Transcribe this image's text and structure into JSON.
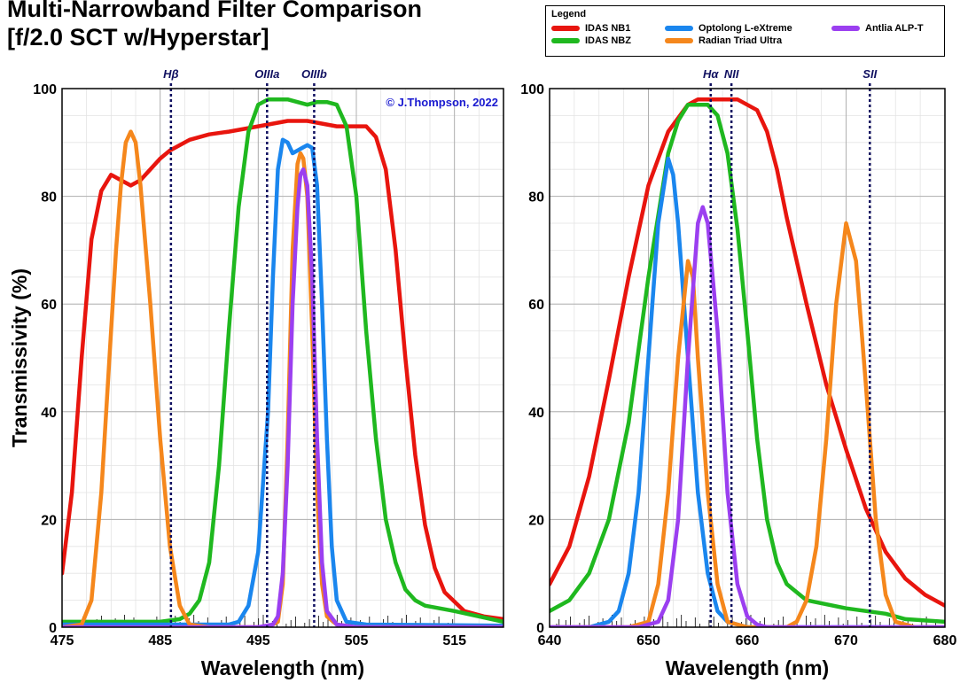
{
  "title_line1": "Multi-Narrowband Filter Comparison",
  "title_line2": "[f/2.0 SCT w/Hyperstar]",
  "copyright": "© J.Thompson, 2022",
  "legend": {
    "title": "Legend",
    "items": [
      {
        "label": "IDAS NB1",
        "color": "#e8150e"
      },
      {
        "label": "IDAS NBZ",
        "color": "#1fb81f"
      },
      {
        "label": "Optolong L-eXtreme",
        "color": "#1a86ee"
      },
      {
        "label": "Radian Triad Ultra",
        "color": "#f5871c"
      },
      {
        "label": "Antlia ALP-T",
        "color": "#9b3ff0"
      }
    ]
  },
  "chart_data": [
    {
      "type": "line",
      "ylabel": "Transmissivity (%)",
      "xlabel": "Wavelength (nm)",
      "xlim": [
        475,
        520
      ],
      "ylim": [
        0,
        100
      ],
      "xticks": [
        475,
        485,
        495,
        505,
        515
      ],
      "yticks": [
        0,
        20,
        40,
        60,
        80,
        100
      ],
      "grid": true,
      "lines": [
        {
          "label": "Hβ",
          "x": 486.1
        },
        {
          "label": "OIIIa",
          "x": 495.9
        },
        {
          "label": "OIIIb",
          "x": 500.7
        }
      ],
      "series": [
        {
          "name": "IDAS NB1",
          "color": "#e8150e",
          "points": [
            [
              475,
              10
            ],
            [
              476,
              25
            ],
            [
              477,
              50
            ],
            [
              478,
              72
            ],
            [
              479,
              81
            ],
            [
              480,
              84
            ],
            [
              481,
              83
            ],
            [
              482,
              82
            ],
            [
              483,
              83
            ],
            [
              484,
              85
            ],
            [
              485,
              87
            ],
            [
              486,
              88.5
            ],
            [
              488,
              90.5
            ],
            [
              490,
              91.5
            ],
            [
              492,
              92
            ],
            [
              495,
              93
            ],
            [
              498,
              94
            ],
            [
              500,
              94
            ],
            [
              503,
              93
            ],
            [
              506,
              93
            ],
            [
              507,
              91
            ],
            [
              508,
              85
            ],
            [
              509,
              70
            ],
            [
              510,
              50
            ],
            [
              511,
              32
            ],
            [
              512,
              19
            ],
            [
              513,
              11
            ],
            [
              514,
              6.5
            ],
            [
              516,
              3
            ],
            [
              518,
              2
            ],
            [
              520,
              1.5
            ]
          ]
        },
        {
          "name": "IDAS NBZ",
          "color": "#1fb81f",
          "points": [
            [
              475,
              1
            ],
            [
              480,
              1
            ],
            [
              485,
              1
            ],
            [
              487,
              1.5
            ],
            [
              488,
              2.5
            ],
            [
              489,
              5
            ],
            [
              490,
              12
            ],
            [
              491,
              30
            ],
            [
              492,
              55
            ],
            [
              493,
              78
            ],
            [
              494,
              92
            ],
            [
              495,
              97
            ],
            [
              496,
              98
            ],
            [
              498,
              98
            ],
            [
              499,
              97.5
            ],
            [
              500,
              97
            ],
            [
              501,
              97.5
            ],
            [
              502,
              97.5
            ],
            [
              503,
              97
            ],
            [
              504,
              93
            ],
            [
              505,
              80
            ],
            [
              506,
              55
            ],
            [
              507,
              35
            ],
            [
              508,
              20
            ],
            [
              509,
              12
            ],
            [
              510,
              7
            ],
            [
              511,
              5
            ],
            [
              512,
              4
            ],
            [
              515,
              3
            ],
            [
              520,
              1
            ]
          ]
        },
        {
          "name": "Optolong L-eXtreme",
          "color": "#1a86ee",
          "points": [
            [
              475,
              0.5
            ],
            [
              490,
              0.5
            ],
            [
              492,
              0.5
            ],
            [
              493,
              1
            ],
            [
              494,
              4
            ],
            [
              495,
              14
            ],
            [
              496,
              40
            ],
            [
              496.5,
              65
            ],
            [
              497,
              85
            ],
            [
              497.5,
              90.5
            ],
            [
              498,
              90
            ],
            [
              498.5,
              88
            ],
            [
              499,
              88.5
            ],
            [
              499.5,
              89
            ],
            [
              500,
              89.5
            ],
            [
              500.5,
              89
            ],
            [
              501,
              82
            ],
            [
              501.5,
              60
            ],
            [
              502,
              35
            ],
            [
              502.5,
              15
            ],
            [
              503,
              5
            ],
            [
              504,
              1
            ],
            [
              506,
              0.5
            ],
            [
              520,
              0.3
            ]
          ]
        },
        {
          "name": "Radian Triad Ultra",
          "color": "#f5871c",
          "points": [
            [
              475,
              0
            ],
            [
              477,
              0.5
            ],
            [
              478,
              5
            ],
            [
              479,
              25
            ],
            [
              480,
              55
            ],
            [
              480.5,
              70
            ],
            [
              481,
              82
            ],
            [
              481.5,
              90
            ],
            [
              482,
              92
            ],
            [
              482.5,
              90
            ],
            [
              483,
              82
            ],
            [
              484,
              60
            ],
            [
              485,
              35
            ],
            [
              486,
              15
            ],
            [
              487,
              4
            ],
            [
              488,
              0.5
            ],
            [
              490,
              0
            ],
            [
              496,
              0
            ],
            [
              497,
              1
            ],
            [
              497.5,
              8
            ],
            [
              498,
              35
            ],
            [
              498.5,
              70
            ],
            [
              499,
              86
            ],
            [
              499.3,
              88
            ],
            [
              499.6,
              87
            ],
            [
              500,
              80
            ],
            [
              500.5,
              55
            ],
            [
              501,
              25
            ],
            [
              501.5,
              8
            ],
            [
              502,
              2
            ],
            [
              503,
              0.5
            ],
            [
              505,
              0
            ],
            [
              520,
              0
            ]
          ]
        },
        {
          "name": "Antlia ALP-T",
          "color": "#9b3ff0",
          "points": [
            [
              475,
              0
            ],
            [
              495,
              0
            ],
            [
              496.5,
              0.5
            ],
            [
              497,
              2
            ],
            [
              497.5,
              10
            ],
            [
              498,
              30
            ],
            [
              498.5,
              60
            ],
            [
              499,
              78
            ],
            [
              499.3,
              84
            ],
            [
              499.6,
              85
            ],
            [
              500,
              82
            ],
            [
              500.5,
              65
            ],
            [
              501,
              35
            ],
            [
              501.5,
              12
            ],
            [
              502,
              3
            ],
            [
              503,
              0.5
            ],
            [
              505,
              0
            ],
            [
              520,
              0
            ]
          ]
        }
      ]
    },
    {
      "type": "line",
      "xlabel": "Wavelength (nm)",
      "xlim": [
        640,
        680
      ],
      "ylim": [
        0,
        100
      ],
      "xticks": [
        640,
        650,
        660,
        670,
        680
      ],
      "yticks": [
        0,
        20,
        40,
        60,
        80,
        100
      ],
      "grid": true,
      "lines": [
        {
          "label": "Hα",
          "x": 656.3
        },
        {
          "label": "NII",
          "x": 658.4
        },
        {
          "label": "SII",
          "x": 672.4
        }
      ],
      "series": [
        {
          "name": "IDAS NB1",
          "color": "#e8150e",
          "points": [
            [
              640,
              8
            ],
            [
              642,
              15
            ],
            [
              644,
              28
            ],
            [
              646,
              46
            ],
            [
              648,
              65
            ],
            [
              650,
              82
            ],
            [
              652,
              92
            ],
            [
              654,
              97
            ],
            [
              655,
              98
            ],
            [
              657,
              98
            ],
            [
              659,
              98
            ],
            [
              661,
              96
            ],
            [
              662,
              92
            ],
            [
              663,
              85
            ],
            [
              664,
              76
            ],
            [
              666,
              60
            ],
            [
              668,
              45
            ],
            [
              670,
              33
            ],
            [
              672,
              22
            ],
            [
              674,
              14
            ],
            [
              676,
              9
            ],
            [
              678,
              6
            ],
            [
              680,
              4
            ]
          ]
        },
        {
          "name": "IDAS NBZ",
          "color": "#1fb81f",
          "points": [
            [
              640,
              3
            ],
            [
              642,
              5
            ],
            [
              644,
              10
            ],
            [
              646,
              20
            ],
            [
              648,
              38
            ],
            [
              650,
              65
            ],
            [
              652,
              88
            ],
            [
              653,
              94
            ],
            [
              654,
              97
            ],
            [
              656,
              97
            ],
            [
              657,
              95
            ],
            [
              658,
              88
            ],
            [
              659,
              74
            ],
            [
              660,
              55
            ],
            [
              661,
              35
            ],
            [
              662,
              20
            ],
            [
              663,
              12
            ],
            [
              664,
              8
            ],
            [
              666,
              5
            ],
            [
              670,
              3.5
            ],
            [
              674,
              2.5
            ],
            [
              676,
              1.5
            ],
            [
              680,
              1
            ]
          ]
        },
        {
          "name": "Optolong L-eXtreme",
          "color": "#1a86ee",
          "points": [
            [
              640,
              0
            ],
            [
              644,
              0
            ],
            [
              646,
              1
            ],
            [
              647,
              3
            ],
            [
              648,
              10
            ],
            [
              649,
              25
            ],
            [
              650,
              50
            ],
            [
              651,
              75
            ],
            [
              652,
              87
            ],
            [
              652.5,
              84
            ],
            [
              653,
              75
            ],
            [
              654,
              50
            ],
            [
              655,
              25
            ],
            [
              656,
              10
            ],
            [
              657,
              3
            ],
            [
              658,
              1
            ],
            [
              660,
              0
            ],
            [
              680,
              0
            ]
          ]
        },
        {
          "name": "Radian Triad Ultra",
          "color": "#f5871c",
          "points": [
            [
              640,
              0
            ],
            [
              648,
              0
            ],
            [
              650,
              1
            ],
            [
              651,
              8
            ],
            [
              652,
              25
            ],
            [
              653,
              50
            ],
            [
              654,
              68
            ],
            [
              654.5,
              65
            ],
            [
              655,
              50
            ],
            [
              656,
              25
            ],
            [
              657,
              8
            ],
            [
              658,
              1
            ],
            [
              660,
              0
            ],
            [
              664,
              0
            ],
            [
              665,
              1
            ],
            [
              666,
              5
            ],
            [
              667,
              15
            ],
            [
              668,
              35
            ],
            [
              669,
              60
            ],
            [
              670,
              75
            ],
            [
              671,
              68
            ],
            [
              672,
              45
            ],
            [
              673,
              20
            ],
            [
              674,
              6
            ],
            [
              675,
              1
            ],
            [
              677,
              0
            ],
            [
              680,
              0
            ]
          ]
        },
        {
          "name": "Antlia ALP-T",
          "color": "#9b3ff0",
          "points": [
            [
              640,
              0
            ],
            [
              649,
              0
            ],
            [
              651,
              1
            ],
            [
              652,
              5
            ],
            [
              653,
              20
            ],
            [
              654,
              50
            ],
            [
              655,
              75
            ],
            [
              655.5,
              78
            ],
            [
              656,
              75
            ],
            [
              657,
              55
            ],
            [
              658,
              25
            ],
            [
              659,
              8
            ],
            [
              660,
              2
            ],
            [
              661,
              0.5
            ],
            [
              662,
              0
            ],
            [
              680,
              0
            ]
          ]
        }
      ]
    }
  ]
}
